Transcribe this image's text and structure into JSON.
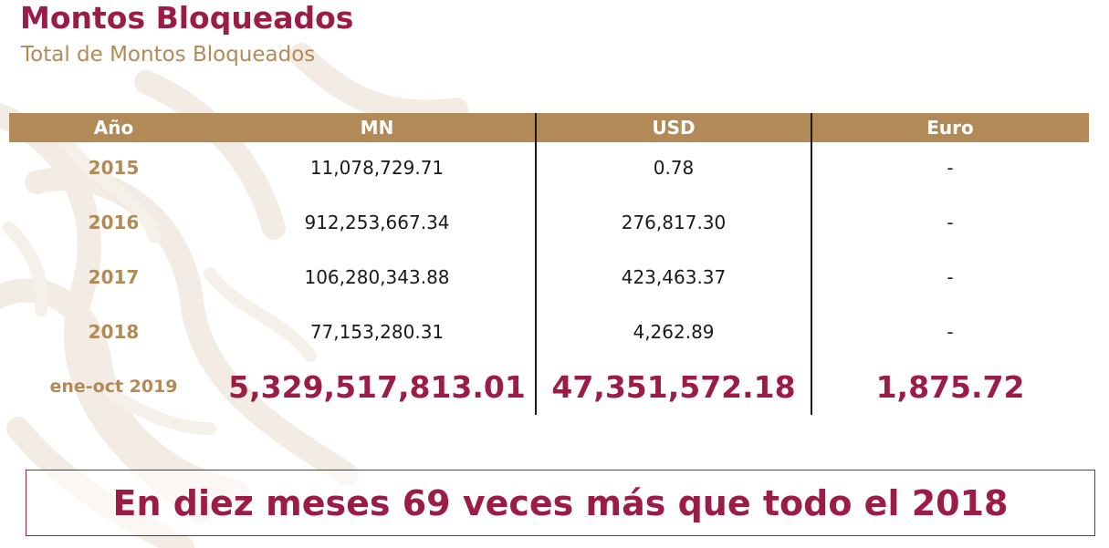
{
  "title": "Montos Bloqueados",
  "subtitle": "Total de Montos Bloqueados",
  "table": {
    "headers": [
      "Año",
      "MN",
      "USD",
      "Euro"
    ],
    "rows": [
      {
        "year": "2015",
        "mn": "11,078,729.71",
        "usd": "0.78",
        "euro": "-"
      },
      {
        "year": "2016",
        "mn": "912,253,667.34",
        "usd": "276,817.30",
        "euro": "-"
      },
      {
        "year": "2017",
        "mn": "106,280,343.88",
        "usd": "423,463.37",
        "euro": "-"
      },
      {
        "year": "2018",
        "mn": "77,153,280.31",
        "usd": "4,262.89",
        "euro": "-"
      },
      {
        "year": "ene-oct 2019",
        "mn": "5,329,517,813.01",
        "usd": "47,351,572.18",
        "euro": "1,875.72"
      }
    ]
  },
  "banner": "En diez meses 69 veces más que todo el 2018",
  "colors": {
    "accent": "#9b1d45",
    "gold": "#b28a57",
    "text": "#1a1a1a"
  }
}
